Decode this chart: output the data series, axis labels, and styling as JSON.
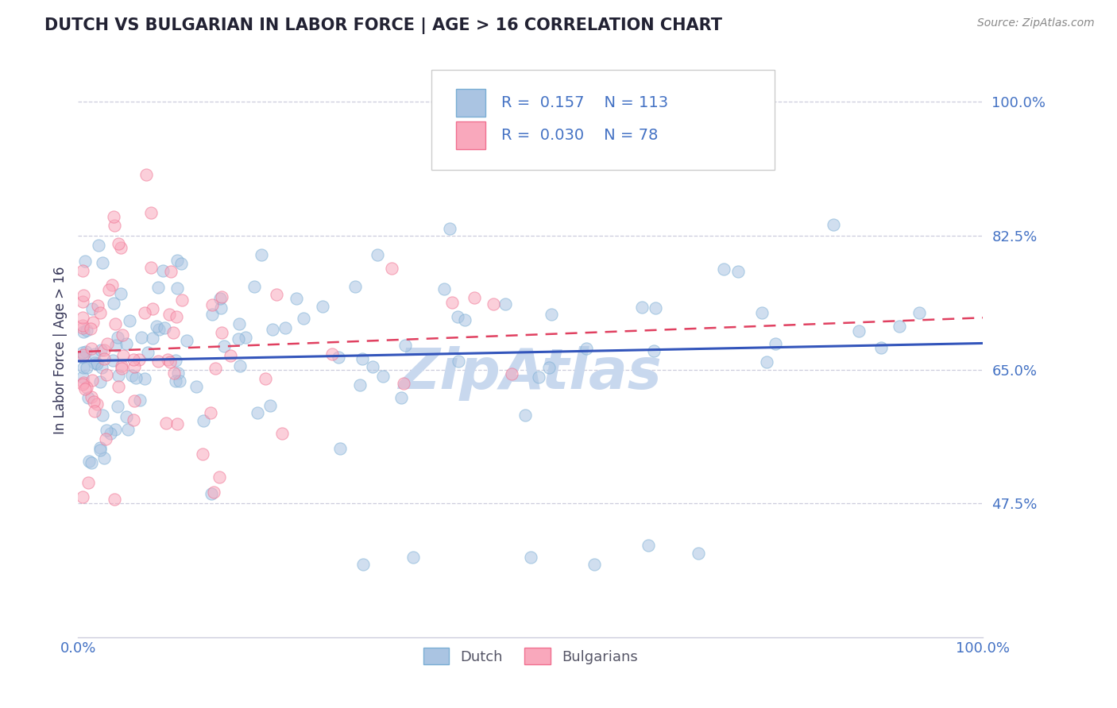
{
  "title": "DUTCH VS BULGARIAN IN LABOR FORCE | AGE > 16 CORRELATION CHART",
  "source_text": "Source: ZipAtlas.com",
  "ylabel": "In Labor Force | Age > 16",
  "xlim": [
    0.0,
    1.0
  ],
  "ylim": [
    0.3,
    1.05
  ],
  "yticks": [
    0.475,
    0.65,
    0.825,
    1.0
  ],
  "ytick_labels": [
    "47.5%",
    "65.0%",
    "82.5%",
    "100.0%"
  ],
  "xtick_labels": [
    "0.0%",
    "100.0%"
  ],
  "dutch_color": "#aac4e2",
  "dutch_edge_color": "#7aaed4",
  "bulgarian_color": "#f9a8bc",
  "bulgarian_edge_color": "#f07090",
  "dutch_line_color": "#3355bb",
  "bulgarian_line_color": "#e04060",
  "legend_r_dutch": "0.157",
  "legend_n_dutch": "113",
  "legend_r_bulgarian": "0.030",
  "legend_n_bulgarian": "78",
  "legend_label_dutch": "Dutch",
  "legend_label_bulgarian": "Bulgarians",
  "watermark": "ZipAtlas",
  "watermark_color": "#c8d8ee",
  "title_color": "#222233",
  "axis_label_color": "#333355",
  "tick_color": "#4472c4",
  "grid_color": "#ccccdd",
  "legend_text_color": "#4472c4",
  "legend_rn_color": "#4472c4",
  "source_color": "#888888",
  "dot_size": 120,
  "dot_alpha": 0.55
}
